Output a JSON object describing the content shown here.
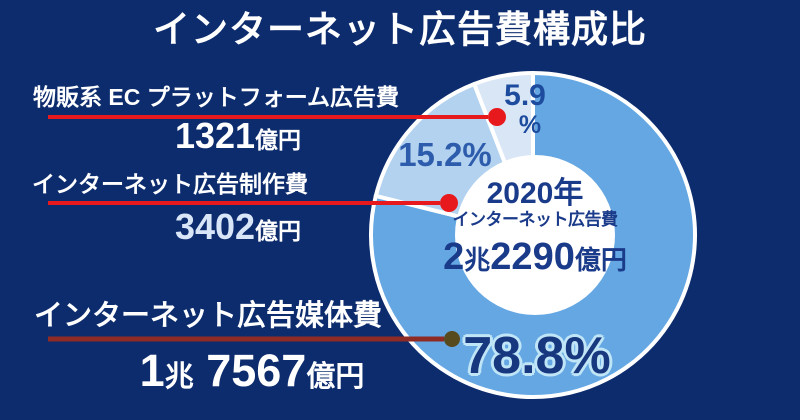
{
  "title": "インターネット広告費構成比",
  "colors": {
    "background": "#0d2c6e",
    "title_text": "#ffffff",
    "label_text": "#ffffff",
    "leader_red": "#e8191c",
    "leader_dark_line": "#8e2b24",
    "leader_dark_dot": "#574a1e",
    "slice_separator": "#ffffff",
    "donut_hole": "#ffffff",
    "pct_large_text": "#17377e",
    "pct_large_outline": "#bfe5f7",
    "pct_mid_text": "#2c5cab",
    "pct_small_text": "#1d4b9d",
    "center_text": "#1a3a8a",
    "value2_tint": "#d9e6f8"
  },
  "chart_data": {
    "type": "pie",
    "donut": true,
    "title": "インターネット広告費構成比",
    "legend_position": "none",
    "total_label": {
      "year": "2020年",
      "label": "インターネット広告費",
      "value_prefix_num": "2",
      "value_prefix_unit": "兆",
      "value_num": "2290",
      "value_unit": "億円",
      "value_text": "2兆2290億円"
    },
    "slices": [
      {
        "label": "インターネット広告媒体費",
        "percent": 78.8,
        "percent_label": "78.8%",
        "amount_text": "1兆7567億円",
        "color": "#64a7e3"
      },
      {
        "label": "インターネット広告制作費",
        "percent": 15.2,
        "percent_label": "15.2%",
        "amount_text": "3402億円",
        "color": "#b3d2ef"
      },
      {
        "label": "物販系 EC プラットフォーム広告費",
        "percent": 5.9,
        "percent_num": "5.9",
        "percent_sym": "%",
        "percent_label": "5.9%",
        "amount_text": "1321億円",
        "color": "#d9e6f6"
      }
    ]
  },
  "callouts": [
    {
      "label": "物販系 EC プラットフォーム広告費",
      "value_num": "1321",
      "value_unit": "億円"
    },
    {
      "label": "インターネット広告制作費",
      "value_num": "3402",
      "value_unit": "億円"
    },
    {
      "label": "インターネット広告媒体費",
      "value_prefix_num": "1",
      "value_prefix_unit": "兆",
      "value_num": "7567",
      "value_unit": "億円"
    }
  ]
}
